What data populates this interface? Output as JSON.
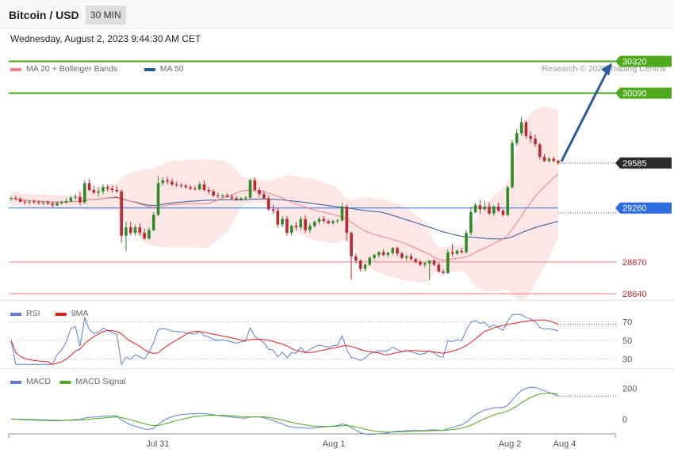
{
  "header": {
    "title": "Bitcoin / USD",
    "interval": "30 MIN",
    "date": "Wednesday, August 2, 2023 9:44:30 AM CET"
  },
  "legend": {
    "main": [
      {
        "label": "MA 20 + Bollinger Bands",
        "color": "#f08080"
      },
      {
        "label": "MA 50",
        "color": "#2c5a9a"
      }
    ],
    "rsi": [
      {
        "label": "RSI",
        "color": "#5b7fd6"
      },
      {
        "label": "9MA",
        "color": "#e02020"
      }
    ],
    "macd": [
      {
        "label": "MACD",
        "color": "#5b7fd6"
      },
      {
        "label": "MACD Signal",
        "color": "#4caa1c"
      }
    ]
  },
  "credit": "Research © 2023 Trading Central",
  "colors": {
    "up": "#2f8a2a",
    "down": "#c0282f",
    "band_fill": "#fde6e6",
    "ma20": "#f08080",
    "ma50": "#2c5a9a",
    "target": "#4caa1c",
    "pivot": "#2d6de0",
    "support": "#f08080",
    "current": "#2b2b2b",
    "arrow": "#2c5a9a"
  },
  "chart_data": [
    {
      "type": "candlestick",
      "x_labels": [
        "Jul 31",
        "Aug 1",
        "Aug 2",
        "Aug 4"
      ],
      "ylim": [
        28560,
        30420
      ],
      "levels": [
        {
          "value": 30320,
          "label": "30320",
          "kind": "target"
        },
        {
          "value": 30090,
          "label": "30090",
          "kind": "target"
        },
        {
          "value": 29585,
          "label": "29585",
          "kind": "current"
        },
        {
          "value": 29260,
          "label": "29260",
          "kind": "pivot"
        },
        {
          "value": 28870,
          "label": "28870",
          "kind": "support"
        },
        {
          "value": 28640,
          "label": "28640",
          "kind": "support"
        }
      ],
      "candles": [
        [
          29325,
          29345,
          29310,
          29330
        ],
        [
          29330,
          29350,
          29315,
          29325
        ],
        [
          29325,
          29340,
          29300,
          29305
        ],
        [
          29305,
          29320,
          29285,
          29300
        ],
        [
          29300,
          29315,
          29285,
          29305
        ],
        [
          29305,
          29320,
          29290,
          29300
        ],
        [
          29300,
          29315,
          29285,
          29295
        ],
        [
          29295,
          29310,
          29280,
          29300
        ],
        [
          29300,
          29315,
          29285,
          29290
        ],
        [
          29290,
          29305,
          29265,
          29280
        ],
        [
          29280,
          29305,
          29270,
          29295
        ],
        [
          29295,
          29315,
          29285,
          29300
        ],
        [
          29300,
          29330,
          29290,
          29310
        ],
        [
          29310,
          29345,
          29300,
          29335
        ],
        [
          29335,
          29360,
          29320,
          29340
        ],
        [
          29340,
          29380,
          29280,
          29300
        ],
        [
          29300,
          29460,
          29290,
          29440
        ],
        [
          29440,
          29470,
          29380,
          29390
        ],
        [
          29390,
          29420,
          29360,
          29370
        ],
        [
          29370,
          29410,
          29340,
          29380
        ],
        [
          29380,
          29430,
          29360,
          29410
        ],
        [
          29410,
          29430,
          29380,
          29400
        ],
        [
          29400,
          29420,
          29370,
          29390
        ],
        [
          29390,
          29420,
          29370,
          29380
        ],
        [
          29380,
          29395,
          29010,
          29060
        ],
        [
          29060,
          29160,
          28950,
          29120
        ],
        [
          29120,
          29160,
          29060,
          29080
        ],
        [
          29080,
          29140,
          29060,
          29120
        ],
        [
          29120,
          29150,
          29060,
          29080
        ],
        [
          29080,
          29110,
          29030,
          29040
        ],
        [
          29040,
          29120,
          29030,
          29100
        ],
        [
          29100,
          29230,
          29090,
          29210
        ],
        [
          29210,
          29490,
          29200,
          29440
        ],
        [
          29440,
          29480,
          29420,
          29460
        ],
        [
          29460,
          29485,
          29430,
          29450
        ],
        [
          29450,
          29470,
          29420,
          29430
        ],
        [
          29430,
          29450,
          29410,
          29425
        ],
        [
          29425,
          29440,
          29405,
          29420
        ],
        [
          29420,
          29435,
          29400,
          29410
        ],
        [
          29410,
          29425,
          29390,
          29400
        ],
        [
          29400,
          29420,
          29385,
          29395
        ],
        [
          29395,
          29450,
          29385,
          29430
        ],
        [
          29430,
          29460,
          29380,
          29390
        ],
        [
          29390,
          29410,
          29360,
          29380
        ],
        [
          29380,
          29395,
          29340,
          29350
        ],
        [
          29350,
          29370,
          29330,
          29345
        ],
        [
          29345,
          29360,
          29330,
          29350
        ],
        [
          29350,
          29365,
          29335,
          29340
        ],
        [
          29340,
          29355,
          29320,
          29330
        ],
        [
          29330,
          29345,
          29310,
          29320
        ],
        [
          29320,
          29340,
          29310,
          29330
        ],
        [
          29330,
          29345,
          29320,
          29335
        ],
        [
          29335,
          29470,
          29325,
          29460
        ],
        [
          29460,
          29480,
          29380,
          29390
        ],
        [
          29390,
          29410,
          29340,
          29360
        ],
        [
          29360,
          29385,
          29320,
          29330
        ],
        [
          29330,
          29350,
          29240,
          29250
        ],
        [
          29250,
          29280,
          29220,
          29240
        ],
        [
          29240,
          29260,
          29120,
          29140
        ],
        [
          29140,
          29200,
          29120,
          29180
        ],
        [
          29180,
          29200,
          29060,
          29080
        ],
        [
          29080,
          29140,
          29060,
          29130
        ],
        [
          29130,
          29160,
          29100,
          29120
        ],
        [
          29120,
          29200,
          29100,
          29180
        ],
        [
          29180,
          29210,
          29080,
          29100
        ],
        [
          29100,
          29150,
          29080,
          29130
        ],
        [
          29130,
          29170,
          29120,
          29160
        ],
        [
          29160,
          29195,
          29140,
          29180
        ],
        [
          29180,
          29200,
          29150,
          29165
        ],
        [
          29165,
          29180,
          29140,
          29150
        ],
        [
          29150,
          29175,
          29140,
          29165
        ],
        [
          29165,
          29180,
          29150,
          29170
        ],
        [
          29170,
          29300,
          29160,
          29270
        ],
        [
          29270,
          29285,
          29020,
          29080
        ],
        [
          29080,
          29090,
          28740,
          28910
        ],
        [
          28910,
          28930,
          28860,
          28880
        ],
        [
          28880,
          28890,
          28800,
          28820
        ],
        [
          28820,
          28860,
          28800,
          28850
        ],
        [
          28850,
          28910,
          28840,
          28900
        ],
        [
          28900,
          28930,
          28880,
          28920
        ],
        [
          28920,
          28950,
          28900,
          28940
        ],
        [
          28940,
          28960,
          28910,
          28920
        ],
        [
          28920,
          28945,
          28905,
          28935
        ],
        [
          28935,
          28980,
          28920,
          28970
        ],
        [
          28970,
          28980,
          28910,
          28930
        ],
        [
          28930,
          28945,
          28890,
          28900
        ],
        [
          28900,
          28920,
          28880,
          28910
        ],
        [
          28910,
          28930,
          28880,
          28890
        ],
        [
          28890,
          28900,
          28860,
          28870
        ],
        [
          28870,
          28885,
          28840,
          28850
        ],
        [
          28850,
          28870,
          28830,
          28860
        ],
        [
          28860,
          28880,
          28740,
          28880
        ],
        [
          28880,
          28890,
          28840,
          28850
        ],
        [
          28850,
          28865,
          28790,
          28800
        ],
        [
          28800,
          28815,
          28780,
          28790
        ],
        [
          28790,
          28960,
          28780,
          28940
        ],
        [
          28940,
          29000,
          28910,
          28930
        ],
        [
          28930,
          28960,
          28920,
          28950
        ],
        [
          28950,
          28970,
          28930,
          28940
        ],
        [
          28940,
          29100,
          28930,
          29080
        ],
        [
          29080,
          29270,
          29060,
          29230
        ],
        [
          29230,
          29300,
          29220,
          29280
        ],
        [
          29280,
          29320,
          29220,
          29250
        ],
        [
          29250,
          29310,
          29240,
          29270
        ],
        [
          29270,
          29300,
          29210,
          29220
        ],
        [
          29220,
          29280,
          29200,
          29270
        ],
        [
          29270,
          29300,
          29230,
          29240
        ],
        [
          29240,
          29250,
          29200,
          29210
        ],
        [
          29210,
          29420,
          29200,
          29410
        ],
        [
          29410,
          29750,
          29400,
          29730
        ],
        [
          29730,
          29830,
          29710,
          29800
        ],
        [
          29800,
          29920,
          29780,
          29880
        ],
        [
          29880,
          29890,
          29760,
          29780
        ],
        [
          29780,
          29810,
          29730,
          29760
        ],
        [
          29760,
          29790,
          29700,
          29720
        ],
        [
          29720,
          29730,
          29610,
          29630
        ],
        [
          29630,
          29650,
          29590,
          29600
        ],
        [
          29600,
          29630,
          29590,
          29615
        ],
        [
          29615,
          29630,
          29590,
          29600
        ],
        [
          29600,
          29610,
          29570,
          29585
        ]
      ]
    },
    {
      "type": "line",
      "name": "RSI",
      "ticks": [
        70,
        50,
        30
      ],
      "ylim": [
        20,
        80
      ]
    },
    {
      "type": "line",
      "name": "MACD",
      "ticks": [
        200,
        0
      ],
      "ylim": [
        -80,
        280
      ]
    }
  ]
}
